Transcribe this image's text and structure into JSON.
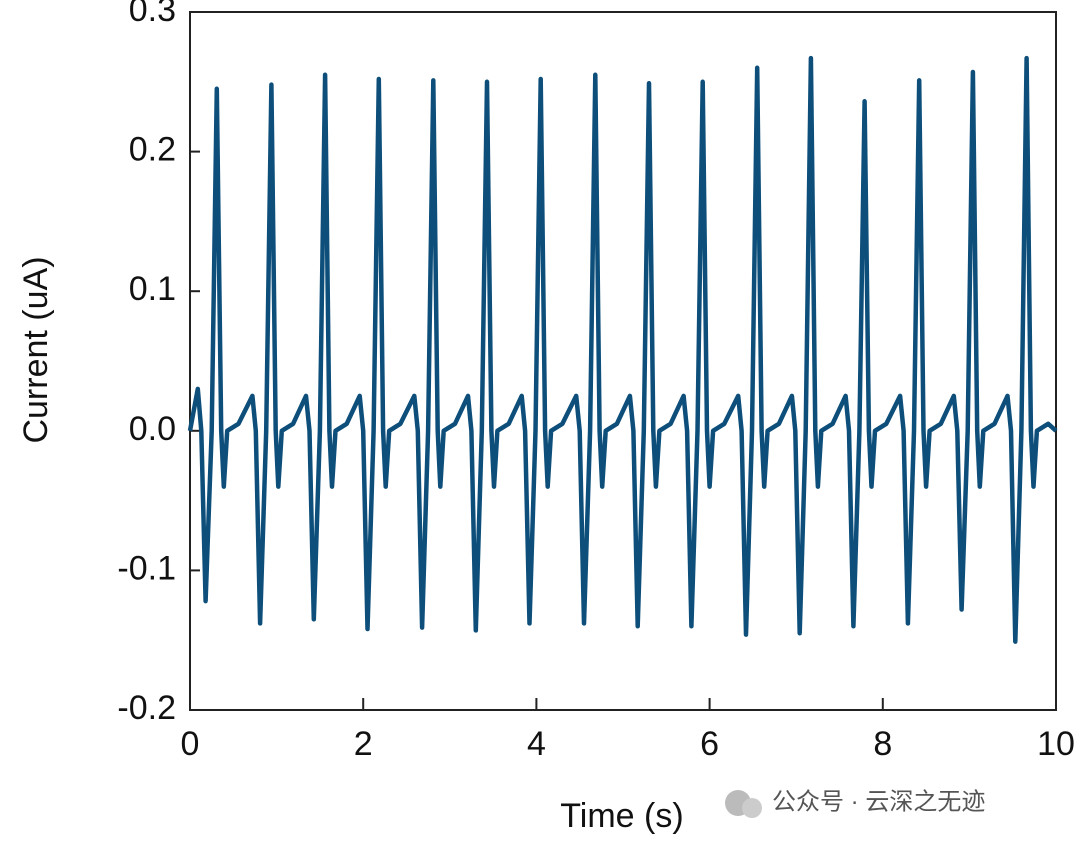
{
  "chart_data": {
    "type": "line",
    "xlabel": "Time (s)",
    "ylabel": "Current (uA)",
    "watermark": "公众号 · 云深之无迹",
    "xlim": [
      0,
      10
    ],
    "xticks": [
      0,
      2,
      4,
      6,
      8,
      10
    ],
    "ylim": [
      -0.2,
      0.3
    ],
    "yticks": [
      {
        "value": -0.2,
        "label": "-0.2"
      },
      {
        "value": -0.1,
        "label": "-0.1"
      },
      {
        "value": 0,
        "label": "0.0"
      },
      0.1,
      0.2,
      0.3
    ],
    "grid": false,
    "x": [
      0,
      0.09,
      0.13,
      0.18,
      0.25,
      0.31,
      0.36,
      0.39,
      0.43,
      0.56,
      0.72,
      0.76,
      0.81,
      0.88,
      0.94,
      0.99,
      1.02,
      1.06,
      1.19,
      1.34,
      1.38,
      1.43,
      1.5,
      1.56,
      1.61,
      1.64,
      1.68,
      1.81,
      1.96,
      2.0,
      2.05,
      2.12,
      2.18,
      2.23,
      2.26,
      2.3,
      2.43,
      2.59,
      2.63,
      2.68,
      2.75,
      2.81,
      2.86,
      2.89,
      2.93,
      3.06,
      3.21,
      3.25,
      3.3,
      3.37,
      3.43,
      3.48,
      3.51,
      3.55,
      3.68,
      3.83,
      3.87,
      3.92,
      3.99,
      4.05,
      4.1,
      4.13,
      4.17,
      4.3,
      4.46,
      4.5,
      4.55,
      4.62,
      4.68,
      4.73,
      4.76,
      4.8,
      4.93,
      5.08,
      5.12,
      5.17,
      5.24,
      5.3,
      5.35,
      5.38,
      5.42,
      5.55,
      5.7,
      5.74,
      5.79,
      5.86,
      5.92,
      5.97,
      6.0,
      6.04,
      6.17,
      6.33,
      6.37,
      6.42,
      6.49,
      6.55,
      6.6,
      6.63,
      6.67,
      6.8,
      6.95,
      6.99,
      7.04,
      7.11,
      7.17,
      7.22,
      7.25,
      7.29,
      7.42,
      7.57,
      7.61,
      7.66,
      7.73,
      7.79,
      7.84,
      7.87,
      7.91,
      8.04,
      8.2,
      8.24,
      8.29,
      8.36,
      8.42,
      8.47,
      8.5,
      8.54,
      8.67,
      8.82,
      8.86,
      8.91,
      8.98,
      9.04,
      9.09,
      9.12,
      9.16,
      9.29,
      9.44,
      9.48,
      9.53,
      9.6,
      9.66,
      9.71,
      9.74,
      9.78,
      9.91,
      10
    ],
    "series": [
      {
        "name": "Current",
        "color": "#0d4f7a",
        "values": [
          0,
          0.03,
          0,
          -0.122,
          0,
          0.245,
          0,
          -0.04,
          0,
          0.005,
          0.025,
          0,
          -0.138,
          0,
          0.248,
          0,
          -0.04,
          0,
          0.005,
          0.025,
          0,
          -0.135,
          0,
          0.255,
          0,
          -0.04,
          0,
          0.005,
          0.025,
          0,
          -0.142,
          0,
          0.252,
          0,
          -0.04,
          0,
          0.005,
          0.025,
          0,
          -0.141,
          0,
          0.251,
          0,
          -0.04,
          0,
          0.005,
          0.025,
          0,
          -0.143,
          0,
          0.25,
          0,
          -0.04,
          0,
          0.005,
          0.025,
          0,
          -0.138,
          0,
          0.252,
          0,
          -0.04,
          0,
          0.005,
          0.025,
          0,
          -0.138,
          0,
          0.255,
          0,
          -0.04,
          0,
          0.005,
          0.025,
          0,
          -0.14,
          0,
          0.249,
          0,
          -0.04,
          0,
          0.005,
          0.025,
          0,
          -0.14,
          0,
          0.25,
          0,
          -0.04,
          0,
          0.005,
          0.025,
          0,
          -0.146,
          0,
          0.26,
          0,
          -0.04,
          0,
          0.005,
          0.025,
          0,
          -0.145,
          0,
          0.267,
          0,
          -0.04,
          0,
          0.005,
          0.025,
          0,
          -0.14,
          0,
          0.236,
          0,
          -0.04,
          0,
          0.005,
          0.025,
          0,
          -0.138,
          0,
          0.251,
          0,
          -0.04,
          0,
          0.005,
          0.025,
          0,
          -0.128,
          0,
          0.257,
          0,
          -0.04,
          0,
          0.005,
          0.025,
          0,
          -0.151,
          0,
          0.267,
          0,
          -0.04,
          0,
          0.005,
          0
        ]
      }
    ]
  }
}
